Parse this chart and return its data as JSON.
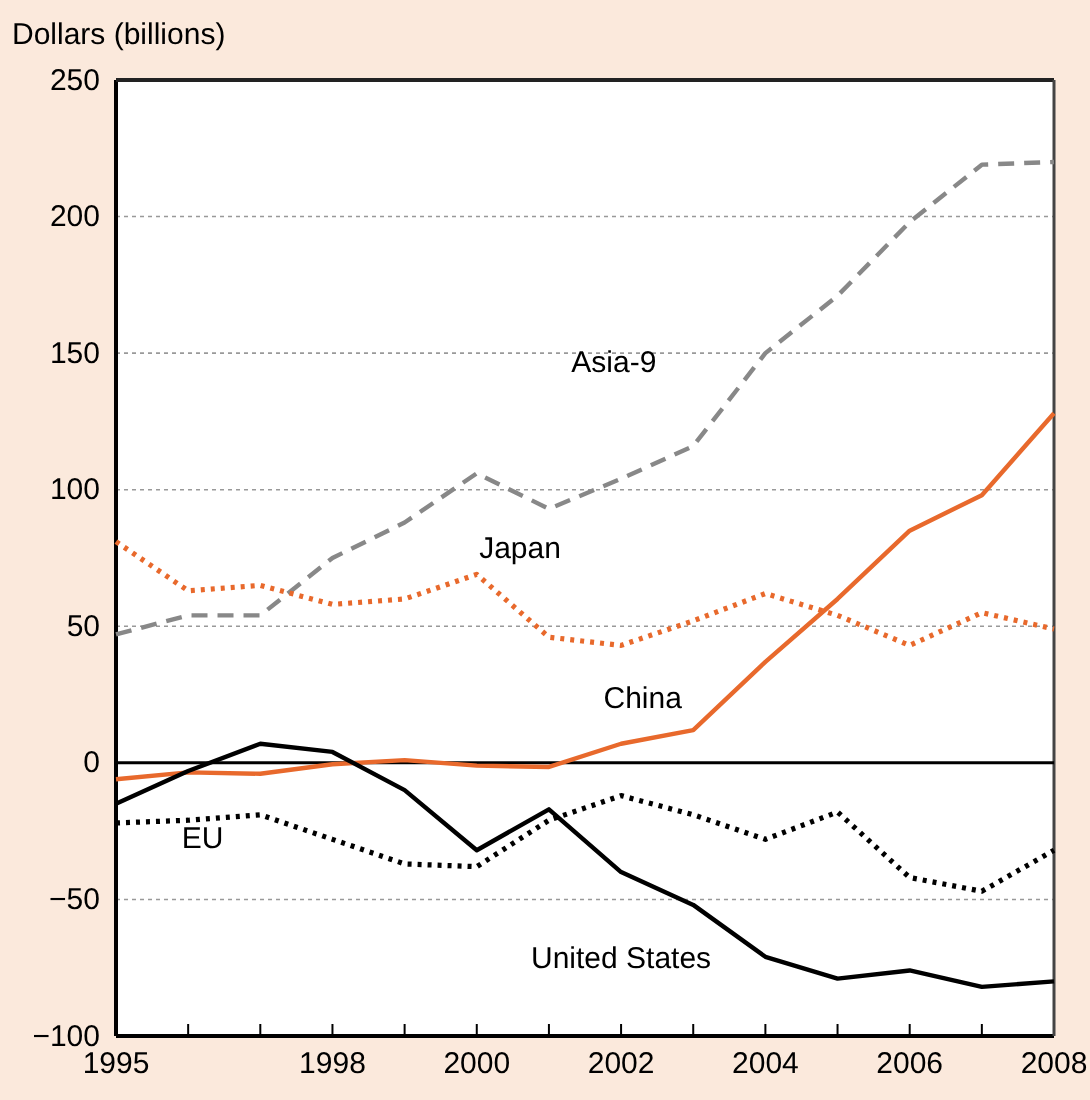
{
  "chart_data": {
    "type": "line",
    "ylabel": "Dollars (billions)",
    "x": [
      1995,
      1996,
      1997,
      1998,
      1999,
      2000,
      2001,
      2002,
      2003,
      2004,
      2005,
      2006,
      2007,
      2008
    ],
    "xlim": [
      1995,
      2008
    ],
    "xticks": [
      1995,
      {
        "value": 1996,
        "label": null
      },
      {
        "value": 1997,
        "label": null
      },
      1998,
      {
        "value": 1999,
        "label": null
      },
      2000,
      {
        "value": 2001,
        "label": null
      },
      2002,
      {
        "value": 2003,
        "label": null
      },
      2004,
      {
        "value": 2005,
        "label": null
      },
      2006,
      {
        "value": 2007,
        "label": null
      },
      2008
    ],
    "ylim": [
      -100,
      250
    ],
    "yticks": [
      -100,
      -50,
      0,
      50,
      100,
      150,
      200,
      250
    ],
    "grid": "y",
    "series": [
      {
        "name": "Asia-9",
        "color": "#888888",
        "line_style": "dashed",
        "values": [
          47,
          54,
          54,
          75,
          88,
          106,
          93,
          104,
          116,
          150,
          171,
          198,
          219,
          220
        ]
      },
      {
        "name": "Japan",
        "color": "#e8692c",
        "line_style": "dotted",
        "values": [
          81,
          63,
          65,
          58,
          60,
          69,
          46,
          43,
          52,
          62,
          54,
          43,
          55,
          49
        ]
      },
      {
        "name": "China",
        "color": "#e8692c",
        "line_style": "solid",
        "values": [
          -6,
          -3.5,
          -4,
          -0.5,
          1,
          -1,
          -1.5,
          7,
          12,
          37,
          60,
          85,
          98,
          128
        ]
      },
      {
        "name": "United States",
        "color": "#000000",
        "line_style": "solid",
        "values": [
          -15,
          -3,
          7,
          4,
          -10,
          -32,
          -17,
          -40,
          -52,
          -71,
          -79,
          -76,
          -82,
          -80
        ]
      },
      {
        "name": "EU",
        "color": "#000000",
        "line_style": "dotted",
        "values": [
          -22,
          -21,
          -19,
          -28,
          -37,
          -38,
          -21,
          -12,
          -19,
          -28,
          -18,
          -42,
          -47,
          -32
        ]
      }
    ]
  }
}
